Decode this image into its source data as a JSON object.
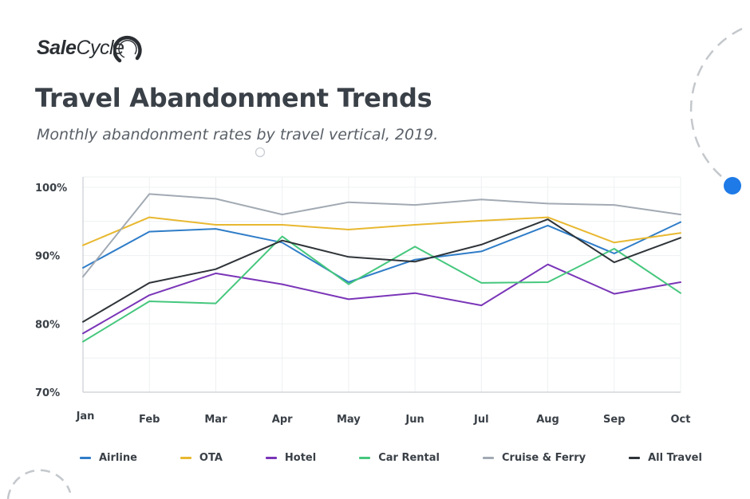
{
  "brand": {
    "logo_bold": "Sale",
    "logo_regular": "Cycle"
  },
  "header": {
    "title": "Travel Abandonment Trends",
    "subtitle": "Monthly abandonment rates by travel vertical, 2019."
  },
  "colors": {
    "airline": "#2f7dc8",
    "ota": "#e8b830",
    "hotel": "#7a35b8",
    "car_rental": "#45c77d",
    "cruise_ferry": "#a2aab3",
    "all_travel": "#2f3439",
    "grid": "#eef0f2",
    "axis": "#c9cdd2",
    "accent_dot": "#1e7ae6"
  },
  "chart_data": {
    "type": "line",
    "categories": [
      "Jan",
      "Feb",
      "Mar",
      "Apr",
      "May",
      "Jun",
      "Jul",
      "Aug",
      "Sep",
      "Oct"
    ],
    "ylim": [
      70,
      101.5
    ],
    "yticks": [
      {
        "value": 100,
        "label": "100%"
      },
      {
        "value": 90,
        "label": "90%"
      },
      {
        "value": 80,
        "label": "80%"
      },
      {
        "value": 70,
        "label": "70%"
      }
    ],
    "grid": true,
    "legend_position": "bottom",
    "series": [
      {
        "name": "Airline",
        "color_key": "airline",
        "values": [
          88.2,
          93.5,
          93.9,
          91.9,
          86.1,
          89.4,
          90.6,
          94.4,
          90.3,
          94.9
        ]
      },
      {
        "name": "OTA",
        "color_key": "ota",
        "values": [
          91.5,
          95.6,
          94.5,
          94.5,
          93.8,
          94.5,
          95.1,
          95.6,
          91.9,
          93.3
        ]
      },
      {
        "name": "Hotel",
        "color_key": "hotel",
        "values": [
          78.6,
          84.2,
          87.4,
          85.8,
          83.6,
          84.5,
          82.7,
          88.7,
          84.4,
          86.1
        ]
      },
      {
        "name": "Car Rental",
        "color_key": "car_rental",
        "values": [
          77.4,
          83.3,
          83.0,
          92.8,
          85.8,
          91.3,
          86.0,
          86.1,
          91.0,
          84.5
        ]
      },
      {
        "name": "Cruise & Ferry",
        "color_key": "cruise_ferry",
        "values": [
          86.9,
          99.0,
          98.3,
          96.0,
          97.8,
          97.4,
          98.2,
          97.6,
          97.4,
          96.0
        ]
      },
      {
        "name": "All Travel",
        "color_key": "all_travel",
        "values": [
          80.3,
          86.0,
          88.0,
          92.2,
          89.8,
          89.1,
          91.6,
          95.3,
          89.0,
          92.6
        ]
      }
    ]
  }
}
